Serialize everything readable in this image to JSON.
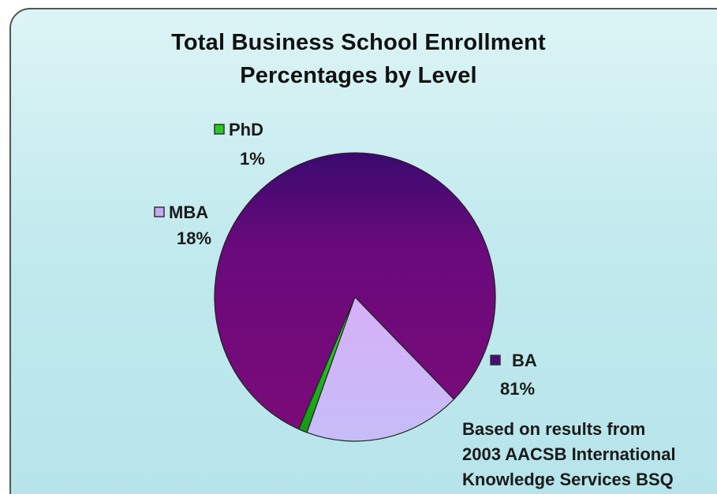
{
  "chart_data": {
    "type": "pie",
    "title": "Total Business School Enrollment Percentages by Level",
    "title_lines": [
      "Total Business School Enrollment",
      "Percentages by Level"
    ],
    "slices": [
      {
        "label": "PhD",
        "value": 1,
        "value_label": "1%",
        "color": "#22cc22"
      },
      {
        "label": "BA",
        "value": 81,
        "value_label": "81%",
        "color": "#6a0e7a"
      },
      {
        "label": "MBA",
        "value": 18,
        "value_label": "18%",
        "color": "#c9a8f5"
      }
    ],
    "legend": "none",
    "note_lines": [
      "Based on results from",
      "2003 AACSB International",
      "Knowledge Services BSQ"
    ]
  }
}
